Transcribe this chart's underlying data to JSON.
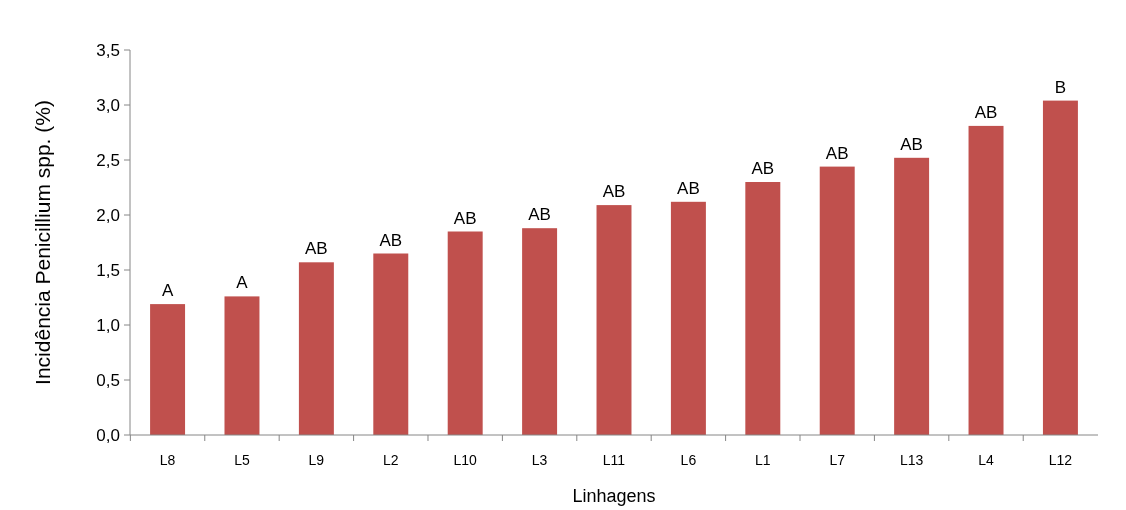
{
  "chart_data": {
    "type": "bar",
    "xlabel": "Linhagens",
    "ylabel": "Incidência Penicillium spp. (%)",
    "categories": [
      "L8",
      "L5",
      "L9",
      "L2",
      "L10",
      "L3",
      "L11",
      "L6",
      "L1",
      "L7",
      "L13",
      "L4",
      "L12"
    ],
    "values": [
      1.19,
      1.26,
      1.57,
      1.65,
      1.85,
      1.88,
      2.09,
      2.12,
      2.3,
      2.44,
      2.52,
      2.81,
      3.04
    ],
    "value_labels": [
      "A",
      "A",
      "AB",
      "AB",
      "AB",
      "AB",
      "AB",
      "AB",
      "AB",
      "AB",
      "AB",
      "AB",
      "B"
    ],
    "color": "#c0504d",
    "ylim": [
      0,
      3.5
    ],
    "yticks": [
      {
        "value": 0,
        "label": "0,0"
      },
      {
        "value": 0.5,
        "label": "0,5"
      },
      {
        "value": 1,
        "label": "1,0"
      },
      {
        "value": 1.5,
        "label": "1,5"
      },
      {
        "value": 2,
        "label": "2,0"
      },
      {
        "value": 2.5,
        "label": "2,5"
      },
      {
        "value": 3,
        "label": "3,0"
      },
      {
        "value": 3.5,
        "label": "3,5"
      }
    ],
    "grid": false
  }
}
